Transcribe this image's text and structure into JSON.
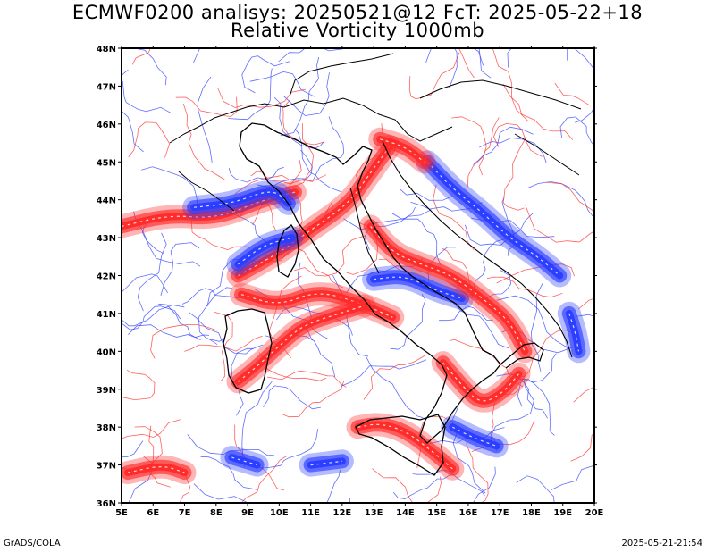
{
  "title_line1": "ECMWF0200 analisys: 20250521@12 FcT: 2025-05-22+18",
  "title_line2": "Relative Vorticity 1000mb",
  "footer_left": "GrADS/COLA",
  "footer_right": "2025-05-21-21:54",
  "colors": {
    "positive": "#ff2a2a",
    "negative": "#2a3cff",
    "coast": "#000000",
    "frame": "#000000"
  },
  "chart_data": {
    "type": "heatmap",
    "x_range": [
      5,
      20
    ],
    "y_range": [
      36,
      48
    ],
    "x_ticks": [
      "5E",
      "6E",
      "7E",
      "8E",
      "9E",
      "10E",
      "11E",
      "12E",
      "13E",
      "14E",
      "15E",
      "16E",
      "17E",
      "18E",
      "19E",
      "20E"
    ],
    "y_ticks": [
      "36N",
      "37N",
      "38N",
      "39N",
      "40N",
      "41N",
      "42N",
      "43N",
      "44N",
      "45N",
      "46N",
      "47N",
      "48N"
    ],
    "vorticity_bands": [
      {
        "sign": "positive",
        "points": [
          [
            5,
            43.3
          ],
          [
            6.5,
            43.6
          ],
          [
            8,
            43.5
          ],
          [
            9.5,
            44.0
          ],
          [
            10.5,
            44.2
          ]
        ]
      },
      {
        "sign": "negative",
        "points": [
          [
            7.3,
            43.8
          ],
          [
            8.5,
            43.9
          ],
          [
            9.8,
            44.3
          ],
          [
            10.3,
            43.9
          ]
        ]
      },
      {
        "sign": "positive",
        "points": [
          [
            8.7,
            42.0
          ],
          [
            10,
            42.6
          ],
          [
            11,
            43.2
          ],
          [
            12.2,
            43.9
          ],
          [
            12.8,
            44.6
          ],
          [
            13.5,
            45.4
          ]
        ]
      },
      {
        "sign": "negative",
        "points": [
          [
            8.7,
            42.3
          ],
          [
            9.5,
            42.8
          ],
          [
            10.4,
            43.0
          ]
        ]
      },
      {
        "sign": "positive",
        "points": [
          [
            8.8,
            41.5
          ],
          [
            10,
            41.2
          ],
          [
            11.2,
            41.6
          ],
          [
            12.5,
            41.3
          ],
          [
            13.6,
            40.9
          ]
        ]
      },
      {
        "sign": "positive",
        "points": [
          [
            8.7,
            39.2
          ],
          [
            9.3,
            39.6
          ],
          [
            10.2,
            40.3
          ],
          [
            10.8,
            40.7
          ],
          [
            11.9,
            41.0
          ],
          [
            12.7,
            41.2
          ]
        ]
      },
      {
        "sign": "negative",
        "points": [
          [
            13.0,
            41.9
          ],
          [
            14.0,
            42.0
          ],
          [
            15.0,
            41.6
          ],
          [
            15.8,
            41.4
          ]
        ]
      },
      {
        "sign": "positive",
        "points": [
          [
            12.9,
            43.3
          ],
          [
            13.6,
            42.6
          ],
          [
            14.5,
            42.3
          ],
          [
            15.5,
            42.0
          ],
          [
            16.6,
            41.3
          ],
          [
            17.3,
            40.8
          ],
          [
            17.8,
            40.0
          ]
        ]
      },
      {
        "sign": "negative",
        "points": [
          [
            14.7,
            45.0
          ],
          [
            15.5,
            44.3
          ],
          [
            16.4,
            43.7
          ],
          [
            17.3,
            43.0
          ],
          [
            18.2,
            42.5
          ],
          [
            18.9,
            42.0
          ]
        ]
      },
      {
        "sign": "positive",
        "points": [
          [
            13.2,
            45.6
          ],
          [
            14.0,
            45.4
          ],
          [
            14.6,
            45.0
          ]
        ]
      },
      {
        "sign": "positive",
        "points": [
          [
            15.2,
            39.7
          ],
          [
            15.8,
            39.1
          ],
          [
            16.4,
            38.6
          ],
          [
            17.1,
            38.9
          ],
          [
            17.6,
            39.4
          ]
        ]
      },
      {
        "sign": "positive",
        "points": [
          [
            12.5,
            38.0
          ],
          [
            13.2,
            38.1
          ],
          [
            14.0,
            37.9
          ],
          [
            14.8,
            37.4
          ],
          [
            15.5,
            36.9
          ]
        ]
      },
      {
        "sign": "negative",
        "points": [
          [
            15.5,
            38.0
          ],
          [
            16.2,
            37.7
          ],
          [
            16.9,
            37.5
          ]
        ]
      },
      {
        "sign": "negative",
        "points": [
          [
            19.2,
            41.0
          ],
          [
            19.4,
            40.5
          ],
          [
            19.5,
            40.0
          ]
        ]
      },
      {
        "sign": "positive",
        "points": [
          [
            5.2,
            36.8
          ],
          [
            6.3,
            37.0
          ],
          [
            7.0,
            36.8
          ]
        ]
      },
      {
        "sign": "negative",
        "points": [
          [
            11.0,
            37.0
          ],
          [
            12.0,
            37.1
          ]
        ]
      },
      {
        "sign": "negative",
        "points": [
          [
            8.5,
            37.2
          ],
          [
            9.3,
            37.0
          ]
        ]
      }
    ]
  }
}
